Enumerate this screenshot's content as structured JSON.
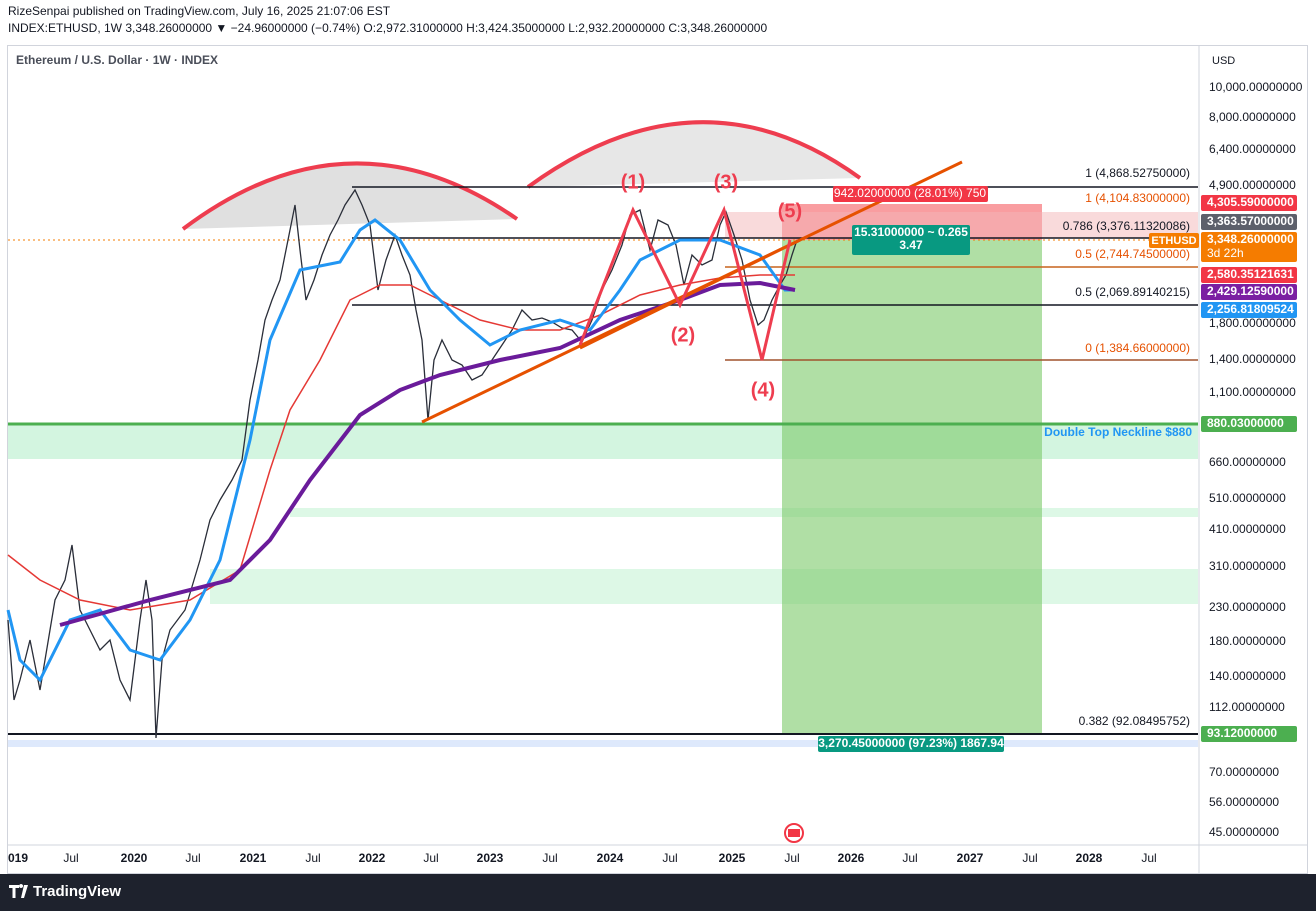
{
  "header": {
    "publisher": "RizeSenpai published on TradingView.com, July 16, 2025 21:07:06 EST",
    "symbol_line": "INDEX:ETHUSD, 1W  3,348.26000000 ▼ −24.96000000 (−0.74%) O:2,972.31000000 H:3,424.35000000 L:2,932.20000000 C:3,348.26000000"
  },
  "legend": "Ethereum / U.S. Dollar · 1W · INDEX",
  "price_axis": {
    "unit": "USD",
    "ticks": [
      "10,000.00000000",
      "8,000.00000000",
      "6,400.00000000",
      "4,900.00000000",
      "1,800.00000000",
      "1,400.00000000",
      "1,100.00000000",
      "660.00000000",
      "510.00000000",
      "410.00000000",
      "310.00000000",
      "230.00000000",
      "180.00000000",
      "140.00000000",
      "112.00000000",
      "70.00000000",
      "56.00000000",
      "45.00000000"
    ]
  },
  "time_axis": {
    "labels": [
      "019",
      "Jul",
      "2020",
      "Jul",
      "2021",
      "Jul",
      "2022",
      "Jul",
      "2023",
      "Jul",
      "2024",
      "Jul",
      "2025",
      "Jul",
      "2026",
      "Jul",
      "2027",
      "Jul",
      "2028",
      "Jul"
    ]
  },
  "price_labels": [
    "4,305.59000000",
    "3,363.57000000",
    "3,348.26000000",
    "2,580.35121631",
    "2,429.12590000",
    "2,256.81809524",
    "880.03000000",
    "93.12000000"
  ],
  "symbol_badge": {
    "name": "ETHUSD",
    "countdown": "3d 22h"
  },
  "fib_labels": [
    "1 (4,868.52750000)",
    "1 (4,104.83000000)",
    "0.786 (3,376.11320086)",
    "0.5 (2,744.74500000)",
    "0.5 (2,069.89140215)",
    "0 (1,384.66000000)",
    "0.382 (92.08495752)"
  ],
  "waves": [
    "(1)",
    "(2)",
    "(3)",
    "(4)",
    "(5)"
  ],
  "neckline_note": "Double Top Neckline $880",
  "boxes": {
    "stop": "942.02000000 (28.01%) 750",
    "ratio": [
      "15.31000000 ~ 0.265",
      "3.47"
    ],
    "target": "3,270.45000000 (97.23%) 1867.94"
  },
  "footer": "TradingView"
}
